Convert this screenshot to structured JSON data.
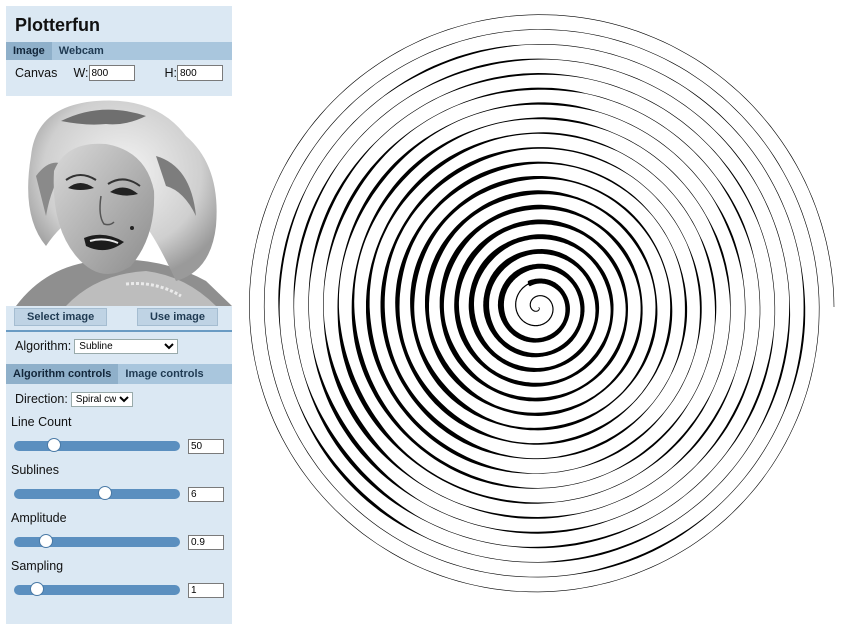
{
  "app": {
    "title": "Plotterfun"
  },
  "source_tabs": [
    {
      "label": "Image",
      "active": true
    },
    {
      "label": "Webcam",
      "active": false
    }
  ],
  "canvas": {
    "label": "Canvas",
    "w_label": "W:",
    "w_value": "800",
    "h_label": "H:",
    "h_value": "800"
  },
  "image_buttons": {
    "select": "Select image",
    "use": "Use image"
  },
  "algorithm": {
    "label": "Algorithm:",
    "selected": "Subline"
  },
  "control_tabs": [
    {
      "label": "Algorithm controls",
      "active": true
    },
    {
      "label": "Image controls",
      "active": false
    }
  ],
  "direction": {
    "label": "Direction:",
    "selected": "Spiral cw"
  },
  "controls": [
    {
      "label": "Line Count",
      "value": "50",
      "fraction": 0.24
    },
    {
      "label": "Sublines",
      "value": "6",
      "fraction": 0.55
    },
    {
      "label": "Amplitude",
      "value": "0.9",
      "fraction": 0.19
    },
    {
      "label": "Sampling",
      "value": "1",
      "fraction": 0.14
    }
  ],
  "colors": {
    "sidebar_bg": "#dbe8f3",
    "tab_bg": "#a9c6dd",
    "slider_track": "#5b8fbf",
    "plot_ink": "#000000"
  },
  "icons": {
    "algorithm_select": "chevron-down-icon",
    "direction_select": "chevron-down-icon"
  }
}
